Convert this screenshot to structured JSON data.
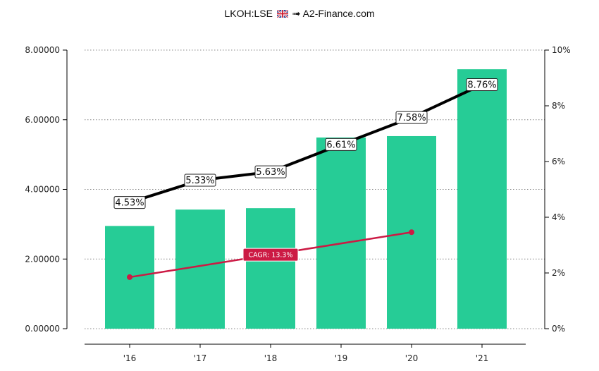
{
  "header": {
    "ticker": "LKOH:LSE",
    "arrow": "➟",
    "source": "A2-Finance.com",
    "flag_icon": "uk-flag-icon"
  },
  "colors": {
    "bar": "#26cc96",
    "yield_line": "#000000",
    "cagr_line": "#cc1a44",
    "grid": "#888888"
  },
  "chart_data": {
    "type": "bar",
    "categories": [
      "'16",
      "'17",
      "'18",
      "'19",
      "'20",
      "'21"
    ],
    "series": [
      {
        "values": [
          2.95,
          3.42,
          3.46,
          5.49,
          5.53,
          7.45
        ],
        "axis": "left",
        "type": "bar"
      },
      {
        "values": [
          4.53,
          5.33,
          5.63,
          6.61,
          7.58,
          8.76
        ],
        "axis": "right",
        "type": "line",
        "labels": [
          "4.53%",
          "5.33%",
          "5.63%",
          "6.61%",
          "7.58%",
          "8.76%"
        ]
      }
    ],
    "cagr": {
      "label": "CAGR: 13.3%",
      "from_category": "'16",
      "to_category": "'20",
      "start_value": 1.48,
      "end_value": 2.77,
      "axis": "left"
    },
    "y_left": {
      "ylim": [
        0,
        8
      ],
      "ticks": [
        "0.00000",
        "2.00000",
        "4.00000",
        "6.00000",
        "8.00000"
      ]
    },
    "y_right": {
      "ylim": [
        0,
        10
      ],
      "ticks": [
        "0%",
        "2%",
        "4%",
        "6%",
        "8%",
        "10%"
      ]
    },
    "grid": true,
    "legend": "none"
  }
}
